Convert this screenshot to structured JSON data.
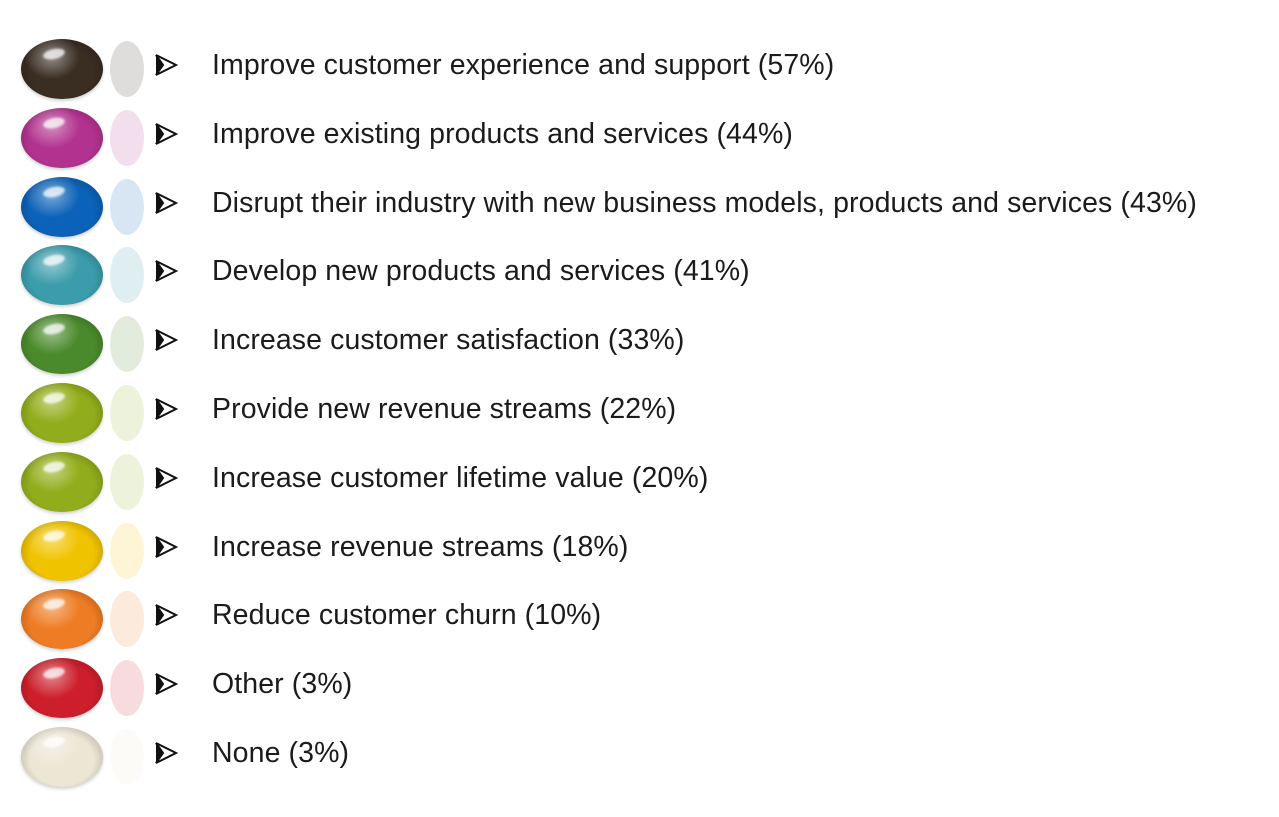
{
  "items": [
    {
      "label": "Improve customer experience and support (57%)",
      "color": "#3a2d22",
      "value_pct": 57
    },
    {
      "label": "Improve existing products and services (44%)",
      "color": "#b2338f",
      "value_pct": 44
    },
    {
      "label": "Disrupt their industry with new business models, products and services (43%)",
      "color": "#0b62b8",
      "value_pct": 43
    },
    {
      "label": "Develop new products and services (41%)",
      "color": "#3b9cab",
      "value_pct": 41
    },
    {
      "label": "Increase customer satisfaction (33%)",
      "color": "#4a8a2c",
      "value_pct": 33
    },
    {
      "label": "Provide new revenue streams (22%)",
      "color": "#92ad1b",
      "value_pct": 22
    },
    {
      "label": "Increase customer lifetime value (20%)",
      "color": "#92ad1b",
      "value_pct": 20
    },
    {
      "label": "Increase revenue streams (18%)",
      "color": "#f0c300",
      "value_pct": 18
    },
    {
      "label": "Reduce customer churn (10%)",
      "color": "#ee7c24",
      "value_pct": 10
    },
    {
      "label": "Other (3%)",
      "color": "#cc1f2b",
      "value_pct": 3
    },
    {
      "label": "None (3%)",
      "color": "#ece6d4",
      "value_pct": 3
    }
  ],
  "icons": {
    "bullet": "arrowhead-bullet-icon",
    "marker": "jelly-bean-icon"
  }
}
